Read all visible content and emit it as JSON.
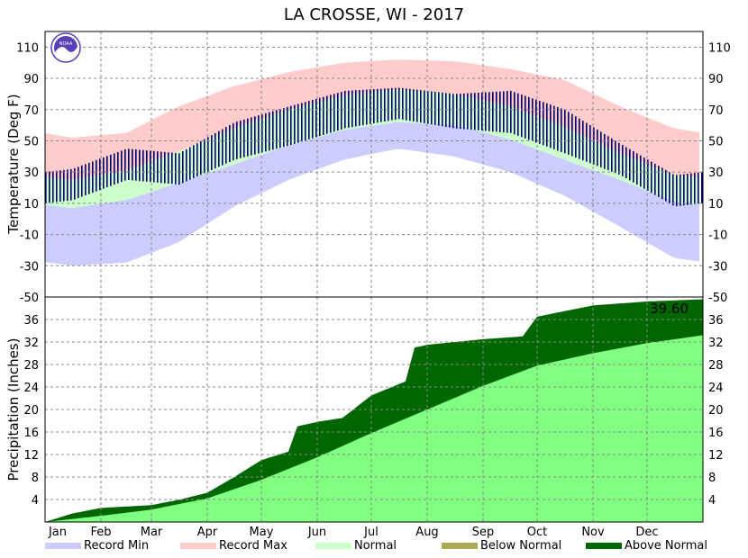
{
  "chart_data": {
    "title": "LA CROSSE, WI - 2017",
    "months": [
      "Jan",
      "Feb",
      "Mar",
      "Apr",
      "May",
      "Jun",
      "Jul",
      "Aug",
      "Sep",
      "Oct",
      "Nov",
      "Dec"
    ],
    "temperature": {
      "type": "area",
      "ylabel": "Temperature (Deg F)",
      "ylim": [
        -50,
        120
      ],
      "yticks": [
        110,
        90,
        70,
        50,
        30,
        10,
        -10,
        -30,
        -50
      ],
      "grid": true,
      "colors": {
        "record_min": "#ccccff",
        "record_max": "#ffcccc",
        "normal": "#ccffcc",
        "observed": "#000066"
      },
      "monthly_mid_day": [
        15,
        45,
        74,
        105,
        135,
        166,
        196,
        227,
        258,
        288,
        319,
        349
      ],
      "record_max_monthly": [
        52,
        55,
        72,
        85,
        94,
        100,
        102,
        101,
        96,
        89,
        72,
        58
      ],
      "record_min_monthly": [
        -30,
        -28,
        -15,
        8,
        25,
        38,
        45,
        40,
        30,
        15,
        -5,
        -25
      ],
      "normal_high_monthly": [
        25,
        31,
        43,
        58,
        70,
        79,
        83,
        80,
        72,
        59,
        42,
        28
      ],
      "normal_low_monthly": [
        7,
        12,
        23,
        35,
        47,
        57,
        62,
        60,
        51,
        38,
        25,
        11
      ],
      "observed_high_monthly": [
        32,
        45,
        42,
        62,
        72,
        82,
        84,
        80,
        82,
        70,
        48,
        28
      ],
      "observed_low_monthly": [
        12,
        25,
        22,
        38,
        47,
        58,
        64,
        58,
        55,
        42,
        28,
        8
      ]
    },
    "precipitation": {
      "type": "area",
      "ylabel": "Precipitation (Inches)",
      "ylim": [
        0,
        40
      ],
      "yticks": [
        36,
        32,
        28,
        24,
        20,
        16,
        12,
        8,
        4
      ],
      "grid": true,
      "total_label": "39.60",
      "colors": {
        "normal": "#80ff80",
        "below_normal": "#aaaa55",
        "above_normal": "#006600"
      },
      "normal_cumulative": [
        {
          "day": 0,
          "value": 0
        },
        {
          "day": 31,
          "value": 1.1
        },
        {
          "day": 59,
          "value": 2.2
        },
        {
          "day": 90,
          "value": 4.2
        },
        {
          "day": 120,
          "value": 7.5
        },
        {
          "day": 151,
          "value": 11.5
        },
        {
          "day": 181,
          "value": 15.8
        },
        {
          "day": 212,
          "value": 20.0
        },
        {
          "day": 243,
          "value": 24.2
        },
        {
          "day": 273,
          "value": 27.8
        },
        {
          "day": 304,
          "value": 30.0
        },
        {
          "day": 334,
          "value": 31.8
        },
        {
          "day": 365,
          "value": 33.2
        }
      ],
      "observed_cumulative": [
        {
          "day": 0,
          "value": 0
        },
        {
          "day": 15,
          "value": 1.5
        },
        {
          "day": 31,
          "value": 2.5
        },
        {
          "day": 59,
          "value": 3.0
        },
        {
          "day": 75,
          "value": 4.0
        },
        {
          "day": 90,
          "value": 5.2
        },
        {
          "day": 105,
          "value": 8.0
        },
        {
          "day": 120,
          "value": 11.0
        },
        {
          "day": 135,
          "value": 12.5
        },
        {
          "day": 140,
          "value": 17.0
        },
        {
          "day": 151,
          "value": 17.8
        },
        {
          "day": 165,
          "value": 18.5
        },
        {
          "day": 181,
          "value": 22.5
        },
        {
          "day": 200,
          "value": 25.0
        },
        {
          "day": 205,
          "value": 31.0
        },
        {
          "day": 212,
          "value": 31.5
        },
        {
          "day": 243,
          "value": 32.5
        },
        {
          "day": 265,
          "value": 33.0
        },
        {
          "day": 273,
          "value": 36.5
        },
        {
          "day": 304,
          "value": 38.5
        },
        {
          "day": 334,
          "value": 39.2
        },
        {
          "day": 365,
          "value": 39.6
        }
      ]
    },
    "legend": {
      "position": "bottom",
      "items": [
        {
          "label": "Record Min",
          "color": "#ccccff"
        },
        {
          "label": "Record Max",
          "color": "#ffcccc"
        },
        {
          "label": "Normal",
          "color": "#ccffcc"
        },
        {
          "label": "Below Normal",
          "color": "#aaaa55"
        },
        {
          "label": "Above Normal",
          "color": "#006600"
        }
      ]
    }
  },
  "logo": {
    "text": "NOAA",
    "color": "#5a3fb8"
  }
}
